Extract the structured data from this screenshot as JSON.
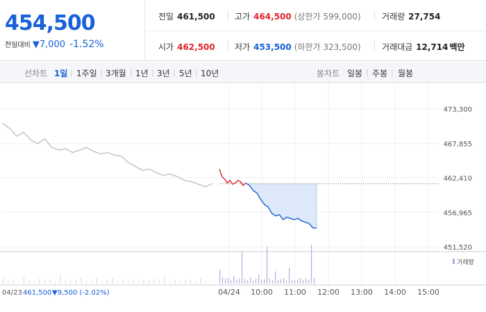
{
  "quote": {
    "price": "454,500",
    "change_label": "전일대비",
    "change_arrow": "▼",
    "change_amount": "7,000",
    "change_percent": "-1.52%",
    "prev_close_label": "전일",
    "prev_close": "461,500",
    "high_label": "고가",
    "high": "464,500",
    "upper_limit": "(상한가 599,000)",
    "volume_label": "거래량",
    "volume": "27,754",
    "open_label": "시가",
    "open": "462,500",
    "low_label": "저가",
    "low": "453,500",
    "lower_limit": "(하한가 323,500)",
    "amount_label": "거래대금",
    "amount": "12,714",
    "amount_unit": "백만"
  },
  "toolbar": {
    "line_chart_label": "선차트",
    "line_periods": [
      "1일",
      "1주일",
      "3개월",
      "1년",
      "3년",
      "5년",
      "10년"
    ],
    "active_period": "1일",
    "candle_chart_label": "봉차트",
    "candle_periods": [
      "일봉",
      "주봉",
      "월봉"
    ]
  },
  "colors": {
    "up": "#e0252b",
    "down": "#1861d6",
    "prev_day": "#c8c8c8",
    "fill": "#dde8f8",
    "volume": "#b9a8dd"
  },
  "chart_data": {
    "type": "line",
    "y_ticks": [
      "473,300",
      "467,855",
      "462,410",
      "456,965",
      "451,520"
    ],
    "ylim": [
      451520,
      473300
    ],
    "reference_price": 461500,
    "x_ticks": [
      "04/24",
      "10:00",
      "11:00",
      "12:00",
      "13:00",
      "14:00",
      "15:00"
    ],
    "prev_day_label": "04/23",
    "prev_day_close": "461,500",
    "prev_day_change": "▼9,500 (-2.02%)",
    "volume_legend": "거래량",
    "prev_day_series": [
      471000,
      470200,
      469000,
      469600,
      468400,
      467800,
      468600,
      467200,
      466800,
      467000,
      466400,
      466800,
      467200,
      466600,
      466200,
      466400,
      466000,
      465800,
      464800,
      464200,
      463600,
      463800,
      463200,
      462800,
      463000,
      462600,
      462000,
      461800,
      461400,
      461000,
      461500
    ],
    "today_up_series": [
      463800,
      462600,
      462200,
      461600,
      462000,
      461400,
      461600,
      462000,
      461800,
      461200,
      461600
    ],
    "today_down_series": [
      461600,
      461200,
      460400,
      460000,
      459000,
      458200,
      457800,
      456800,
      456400,
      456600,
      455800,
      456200,
      456000,
      455800,
      456000,
      455600,
      455400,
      455200,
      454500,
      454500
    ],
    "prev_day_volume": [
      1,
      0.5,
      0.8,
      0.3,
      1.2,
      0.6,
      0.4,
      0.9,
      0.5,
      0.7,
      0.3,
      1.5,
      0.6,
      0.4,
      0.8,
      1.1,
      0.5,
      0.6,
      0.9,
      0.4,
      0.7,
      1.0,
      0.5,
      0.6,
      0.3,
      0.8,
      0.4,
      0.6,
      0.5,
      0.9,
      0.6,
      1.3,
      0.4,
      0.7,
      0.5,
      0.8,
      0.6,
      0.4,
      1.0,
      0.5
    ],
    "today_volume": [
      2.5,
      1.2,
      0.8,
      1.0,
      0.6,
      1.4,
      0.7,
      0.9,
      5.8,
      0.8,
      0.6,
      1.1,
      0.5,
      0.9,
      1.6,
      0.7,
      0.8,
      6.6,
      0.9,
      0.7,
      2.2,
      0.6,
      0.8,
      1.0,
      0.5,
      2.9,
      0.7,
      0.6,
      0.8,
      1.0,
      0.6,
      0.9,
      0.7,
      7.0,
      1.0
    ]
  }
}
